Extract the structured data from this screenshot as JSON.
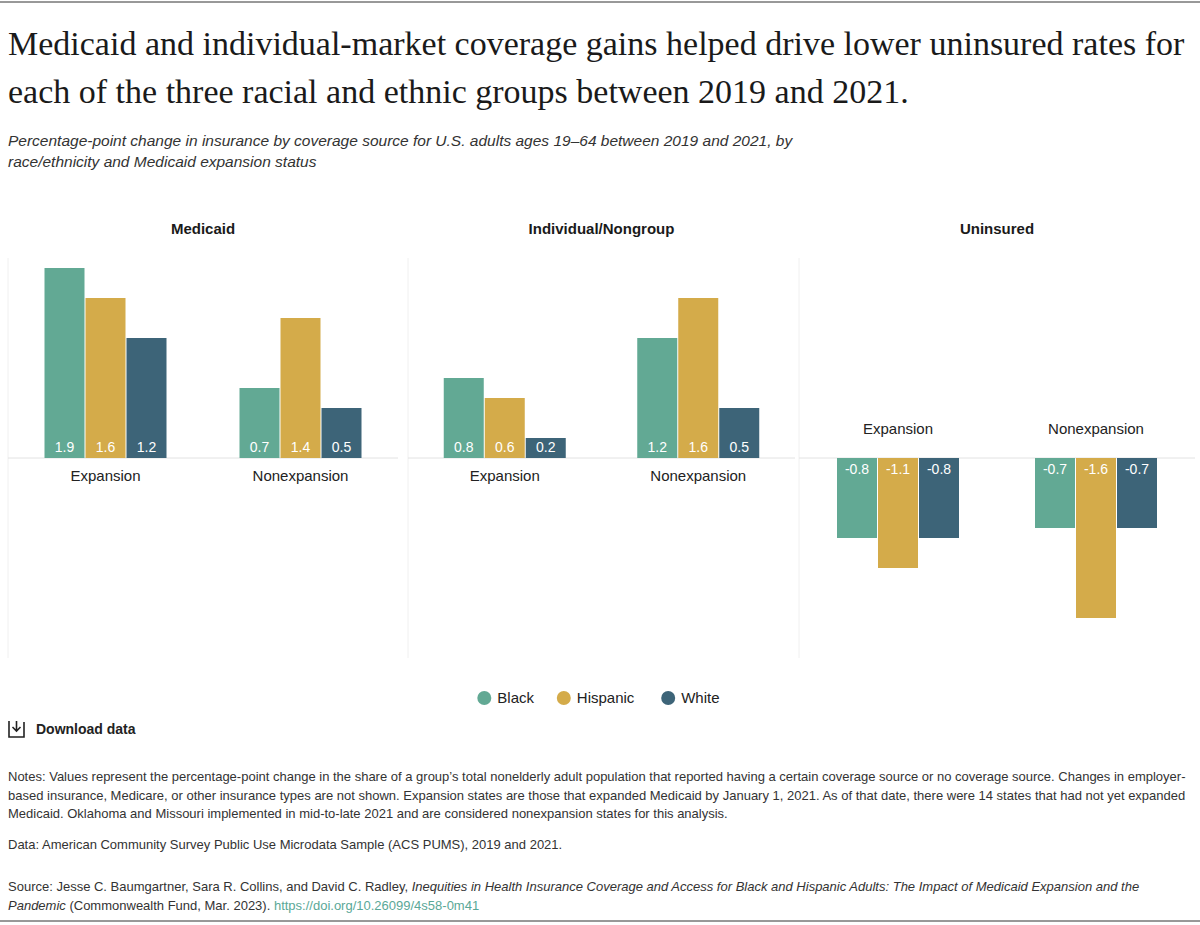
{
  "page": {
    "title": "Medicaid and individual-market coverage gains helped drive lower uninsured rates for each of the three racial and ethnic groups between 2019 and 2021.",
    "subtitle": "Percentage-point change in insurance by coverage source for U.S. adults ages 19–64 between 2019 and 2021, by race/ethnicity and Medicaid expansion status",
    "download": "Download data",
    "notes": "Notes: Values represent the percentage-point change in the share of a group’s total nonelderly adult population that reported having a certain coverage source or no coverage source. Changes in employer-based insurance, Medicare, or other insurance types are not shown. Expansion states are those that expanded Medicaid by January 1, 2021. As of that date, there were 14 states that had not yet expanded Medicaid. Oklahoma and Missouri implemented in mid-to-late 2021 and are considered nonexpansion states for this analysis.",
    "data": "Data: American Community Survey Public Use Microdata Sample (ACS PUMS), 2019 and 2021.",
    "source_prefix": "Source: Jesse C. Baumgartner, Sara R. Collins, and David C. Radley, ",
    "source_title": "Inequities in Health Insurance Coverage and Access for Black and Hispanic Adults: The Impact of Medicaid Expansion and the Pandemic",
    "source_suffix": " (Commonwealth Fund, Mar. 2023). ",
    "source_link": "https://doi.org/10.26099/4s58-0m41"
  },
  "chart_data": [
    {
      "type": "bar",
      "title": "Medicaid",
      "categories": [
        "Expansion",
        "Nonexpansion"
      ],
      "series": [
        {
          "name": "Black",
          "color": "#62a994",
          "values": [
            1.9,
            0.7
          ]
        },
        {
          "name": "Hispanic",
          "color": "#d4ab4a",
          "values": [
            1.6,
            1.4
          ]
        },
        {
          "name": "White",
          "color": "#3d6478",
          "values": [
            1.2,
            0.5
          ]
        }
      ],
      "ylim": [
        -2,
        2
      ],
      "yticks": [
        0
      ],
      "grid": true,
      "data_labels": true,
      "tick_labels": "x",
      "legend": "bottom"
    },
    {
      "type": "bar",
      "title": "Individual/Nongroup",
      "categories": [
        "Expansion",
        "Nonexpansion"
      ],
      "series": [
        {
          "color": "#62a994",
          "values": [
            0.8,
            1.2
          ]
        },
        {
          "color": "#d4ab4a",
          "values": [
            0.6,
            1.6
          ]
        },
        {
          "color": "#3d6478",
          "values": [
            0.2,
            0.5
          ]
        }
      ],
      "ylim": [
        -2,
        2
      ],
      "yticks": [
        0
      ],
      "grid": true,
      "data_labels": true,
      "tick_labels": "x"
    },
    {
      "type": "bar",
      "title": "Uninsured",
      "categories": [
        "Expansion",
        "Nonexpansion"
      ],
      "series": [
        {
          "color": "#62a994",
          "values": [
            -0.8,
            -0.7
          ]
        },
        {
          "color": "#d4ab4a",
          "values": [
            -1.1,
            -1.6
          ]
        },
        {
          "color": "#3d6478",
          "values": [
            -0.8,
            -0.7
          ]
        }
      ],
      "ylim": [
        -2,
        2
      ],
      "yticks": [
        0
      ],
      "grid": true,
      "data_labels": true,
      "tick_labels": "x"
    }
  ]
}
